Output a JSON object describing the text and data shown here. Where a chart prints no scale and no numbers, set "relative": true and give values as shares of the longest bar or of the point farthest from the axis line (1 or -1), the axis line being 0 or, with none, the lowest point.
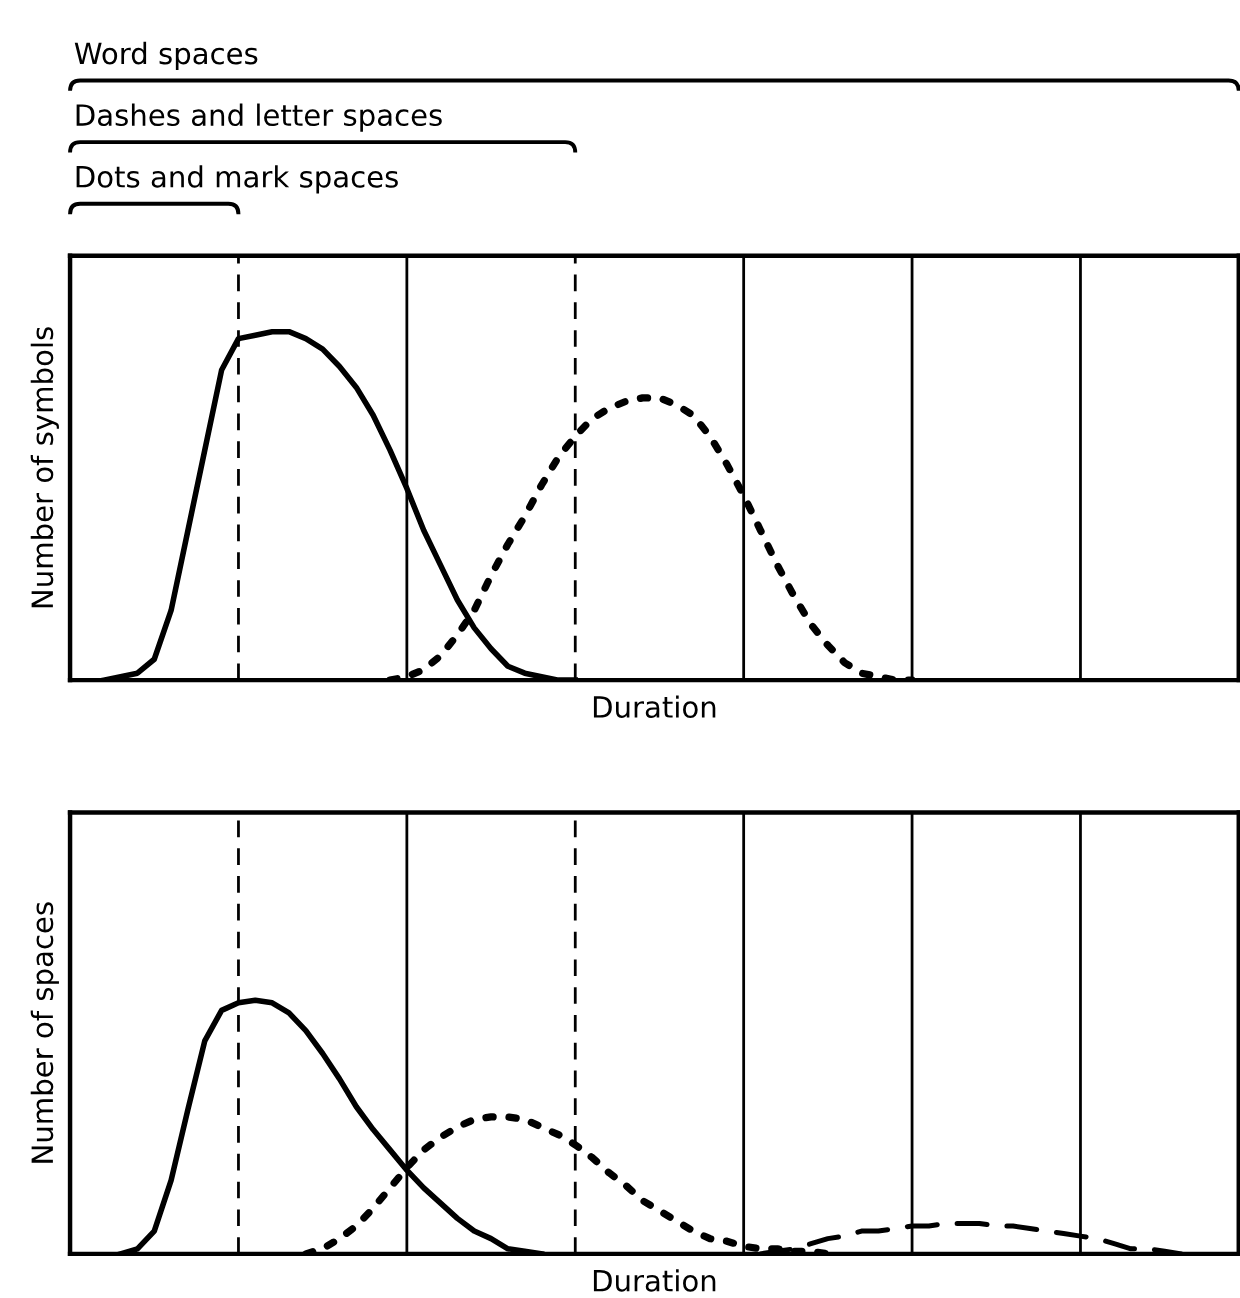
{
  "chart_data": [
    {
      "type": "line",
      "relative": true,
      "xlabel": "Duration",
      "ylabel": "Number of symbols",
      "grid": "x",
      "annotations": [
        "Word spaces",
        "Dashes and letter spaces",
        "Dots and mark spaces"
      ],
      "categories": [
        null,
        null,
        null,
        null,
        null,
        null,
        null,
        null,
        null,
        null,
        null,
        null,
        null,
        null,
        null,
        null,
        null,
        null,
        null,
        null,
        null,
        null,
        null,
        null,
        null,
        null,
        null,
        null,
        null,
        null,
        null,
        null,
        null,
        null,
        null,
        null,
        null,
        null,
        null,
        null,
        null,
        null,
        null,
        null,
        null,
        null,
        null,
        null,
        null,
        null,
        null,
        null,
        null,
        null,
        null,
        null,
        null,
        null,
        null,
        null,
        null,
        null,
        null,
        null,
        null,
        null,
        null,
        null,
        null,
        null
      ],
      "series": [
        {
          "color": "#000000",
          "line_style": "solid",
          "values": [
            null,
            null,
            0,
            0.01,
            0.02,
            0.06,
            0.2,
            0.43,
            0.66,
            0.89,
            0.98,
            0.99,
            1.0,
            1.0,
            0.98,
            0.95,
            0.9,
            0.84,
            0.76,
            0.66,
            0.55,
            0.43,
            0.33,
            0.23,
            0.15,
            0.09,
            0.04,
            0.02,
            0.01,
            0,
            0,
            null,
            null,
            null,
            null,
            null,
            null,
            null,
            null,
            null,
            null,
            null,
            null,
            null,
            null,
            null,
            null,
            null,
            null,
            null,
            null,
            null,
            null,
            null,
            null,
            null,
            null,
            null,
            null,
            null,
            null,
            null,
            null,
            null,
            null,
            null,
            null,
            null,
            null,
            null
          ]
        },
        {
          "color": "#000000",
          "line_style": "dotted",
          "values": [
            null,
            null,
            null,
            null,
            null,
            null,
            null,
            null,
            null,
            null,
            null,
            null,
            null,
            null,
            null,
            null,
            null,
            null,
            null,
            0,
            0.01,
            0.03,
            0.07,
            0.13,
            0.2,
            0.3,
            0.39,
            0.47,
            0.56,
            0.64,
            0.7,
            0.75,
            0.78,
            0.8,
            0.81,
            0.81,
            0.79,
            0.76,
            0.7,
            0.62,
            0.53,
            0.43,
            0.33,
            0.24,
            0.16,
            0.1,
            0.05,
            0.02,
            0.01,
            0,
            0,
            null,
            null,
            null,
            null,
            null,
            null,
            null,
            null,
            null,
            null,
            null,
            null,
            null,
            null,
            null,
            null,
            null,
            null,
            null
          ]
        }
      ]
    },
    {
      "type": "line",
      "relative": true,
      "xlabel": "Duration",
      "ylabel": "Number of spaces",
      "grid": "x",
      "categories": [
        null,
        null,
        null,
        null,
        null,
        null,
        null,
        null,
        null,
        null,
        null,
        null,
        null,
        null,
        null,
        null,
        null,
        null,
        null,
        null,
        null,
        null,
        null,
        null,
        null,
        null,
        null,
        null,
        null,
        null,
        null,
        null,
        null,
        null,
        null,
        null,
        null,
        null,
        null,
        null,
        null,
        null,
        null,
        null,
        null,
        null,
        null,
        null,
        null,
        null,
        null,
        null,
        null,
        null,
        null,
        null,
        null,
        null,
        null,
        null,
        null,
        null,
        null,
        null,
        null,
        null,
        null,
        null,
        null,
        null
      ],
      "series": [
        {
          "color": "#000000",
          "line_style": "solid",
          "values": [
            null,
            null,
            null,
            0,
            0.02,
            0.09,
            0.29,
            0.57,
            0.84,
            0.96,
            0.99,
            1.0,
            0.99,
            0.95,
            0.88,
            0.79,
            0.69,
            0.58,
            0.49,
            0.41,
            0.33,
            0.26,
            0.2,
            0.14,
            0.09,
            0.06,
            0.02,
            0.01,
            0,
            null,
            null,
            null,
            null,
            null,
            null,
            null,
            null,
            null,
            null,
            null,
            null,
            null,
            null,
            null,
            null,
            null,
            null,
            null,
            null,
            null,
            null,
            null,
            null,
            null,
            null,
            null,
            null,
            null,
            null,
            null,
            null,
            null,
            null,
            null,
            null,
            null,
            null,
            null,
            null,
            null
          ]
        },
        {
          "color": "#000000",
          "line_style": "dotted",
          "values": [
            null,
            null,
            null,
            null,
            null,
            null,
            null,
            null,
            null,
            null,
            null,
            null,
            null,
            null,
            0,
            0.02,
            0.06,
            0.11,
            0.18,
            0.26,
            0.34,
            0.41,
            0.46,
            0.5,
            0.53,
            0.54,
            0.54,
            0.53,
            0.5,
            0.47,
            0.43,
            0.38,
            0.32,
            0.27,
            0.21,
            0.17,
            0.13,
            0.09,
            0.06,
            0.05,
            0.03,
            0.02,
            0.02,
            0.01,
            0.01,
            0,
            null,
            null,
            null,
            null,
            null,
            null,
            null,
            null,
            null,
            null,
            null,
            null,
            null,
            null,
            null,
            null,
            null,
            null,
            null,
            null,
            null,
            null,
            null,
            null
          ]
        },
        {
          "color": "#000000",
          "line_style": "dashed",
          "values": [
            null,
            null,
            null,
            null,
            null,
            null,
            null,
            null,
            null,
            null,
            null,
            null,
            null,
            null,
            null,
            null,
            null,
            null,
            null,
            null,
            null,
            null,
            null,
            null,
            null,
            null,
            null,
            null,
            null,
            null,
            null,
            null,
            null,
            null,
            null,
            null,
            null,
            null,
            null,
            null,
            null,
            0,
            0.01,
            0.02,
            0.04,
            0.06,
            0.07,
            0.09,
            0.09,
            0.1,
            0.11,
            0.11,
            0.12,
            0.12,
            0.12,
            0.11,
            0.11,
            0.1,
            0.09,
            0.08,
            0.07,
            0.06,
            0.04,
            0.02,
            0.02,
            0.01,
            0,
            null,
            null,
            null
          ]
        }
      ]
    }
  ]
}
